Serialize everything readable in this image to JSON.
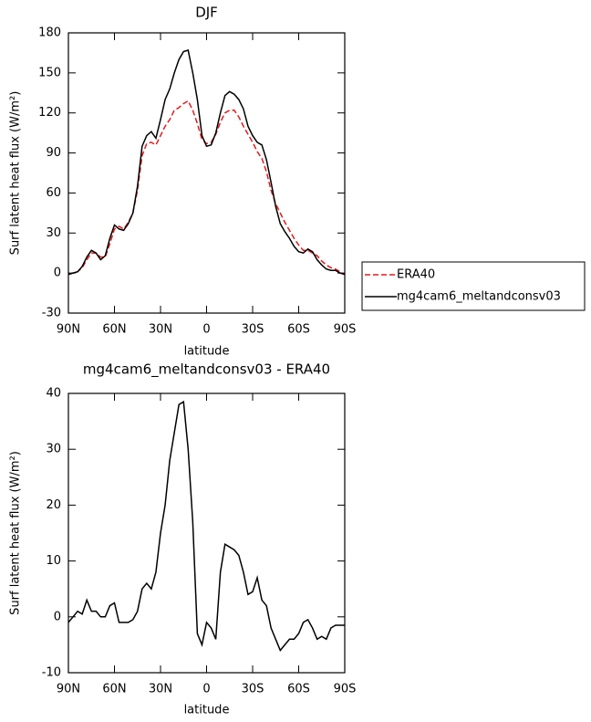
{
  "chart_data": [
    {
      "type": "line",
      "title": "DJF",
      "x_label": "latitude",
      "y_label": "Surf latent heat flux (W/m²)",
      "x": [
        90,
        87,
        84,
        81,
        78,
        75,
        72,
        69,
        66,
        63,
        60,
        57,
        54,
        51,
        48,
        45,
        42,
        39,
        36,
        33,
        30,
        27,
        24,
        21,
        18,
        15,
        12,
        9,
        6,
        3,
        0,
        -3,
        -6,
        -9,
        -12,
        -15,
        -18,
        -21,
        -24,
        -27,
        -30,
        -33,
        -36,
        -39,
        -42,
        -45,
        -48,
        -51,
        -54,
        -57,
        -60,
        -63,
        -66,
        -69,
        -72,
        -75,
        -78,
        -81,
        -84,
        -87,
        -90
      ],
      "series": [
        {
          "name": "ERA40",
          "color": "#e41a1c",
          "line_style": "dashed",
          "values": [
            -1,
            0,
            1,
            4,
            10,
            15,
            15,
            12,
            12,
            22,
            33,
            35,
            33,
            38,
            45,
            62,
            88,
            97,
            98,
            96,
            103,
            110,
            115,
            122,
            124,
            127,
            129,
            122,
            112,
            100,
            97,
            98,
            104,
            113,
            120,
            122,
            122,
            117,
            110,
            104,
            98,
            91,
            86,
            76,
            62,
            52,
            45,
            38,
            32,
            26,
            21,
            17,
            17,
            15,
            13,
            9,
            6,
            4,
            3,
            1,
            -1
          ]
        },
        {
          "name": "mg4cam6_meltandconsv03",
          "color": "#000000",
          "line_style": "solid",
          "values": [
            -1,
            0,
            1,
            5,
            12,
            17,
            15,
            10,
            13,
            26,
            36,
            33,
            32,
            37,
            45,
            65,
            95,
            103,
            106,
            101,
            115,
            130,
            138,
            150,
            160,
            166,
            167,
            150,
            130,
            103,
            95,
            96,
            105,
            120,
            133,
            136,
            134,
            130,
            123,
            110,
            103,
            98,
            96,
            85,
            68,
            50,
            37,
            31,
            26,
            20,
            16,
            15,
            18,
            16,
            10,
            6,
            3,
            2,
            2,
            0,
            -1
          ]
        }
      ],
      "xlim": [
        90,
        -90
      ],
      "xticks": [
        {
          "value": 90,
          "label": "90N"
        },
        {
          "value": 60,
          "label": "60N"
        },
        {
          "value": 30,
          "label": "30N"
        },
        0,
        {
          "value": -30,
          "label": "30S"
        },
        {
          "value": -60,
          "label": "60S"
        },
        {
          "value": -90,
          "label": "90S"
        }
      ],
      "ylim": [
        -30,
        180
      ],
      "yticks": [
        -30,
        0,
        30,
        60,
        90,
        120,
        150,
        180
      ],
      "legend": "right"
    },
    {
      "type": "line",
      "title": "mg4cam6_meltandconsv03 - ERA40",
      "x_label": "latitude",
      "y_label": "Surf latent heat flux (W/m²)",
      "x": [
        90,
        87,
        84,
        81,
        78,
        75,
        72,
        69,
        66,
        63,
        60,
        57,
        54,
        51,
        48,
        45,
        42,
        39,
        36,
        33,
        30,
        27,
        24,
        21,
        18,
        15,
        12,
        9,
        6,
        3,
        0,
        -3,
        -6,
        -9,
        -12,
        -15,
        -18,
        -21,
        -24,
        -27,
        -30,
        -33,
        -36,
        -39,
        -42,
        -45,
        -48,
        -51,
        -54,
        -57,
        -60,
        -63,
        -66,
        -69,
        -72,
        -75,
        -78,
        -81,
        -84,
        -87,
        -90
      ],
      "series": [
        {
          "color": "#000000",
          "line_style": "solid",
          "values": [
            -1,
            0,
            1,
            0.5,
            3,
            1,
            1,
            0,
            0,
            2,
            2.5,
            -1,
            -1,
            -1,
            -0.5,
            1,
            5,
            6,
            5,
            8,
            15,
            20,
            28,
            33,
            38,
            38.5,
            30,
            17,
            -3,
            -5,
            -1,
            -2,
            -4,
            8,
            13,
            12.5,
            12,
            11,
            8,
            4,
            4.5,
            7,
            3,
            2,
            -2,
            -4,
            -6,
            -5,
            -4,
            -4,
            -3,
            -1,
            -0.5,
            -2,
            -4,
            -3.5,
            -4,
            -2,
            -1.5,
            -1.5,
            -1.5
          ]
        }
      ],
      "xlim": [
        90,
        -90
      ],
      "xticks": [
        {
          "value": 90,
          "label": "90N"
        },
        {
          "value": 60,
          "label": "60N"
        },
        {
          "value": 30,
          "label": "30N"
        },
        0,
        {
          "value": -30,
          "label": "30S"
        },
        {
          "value": -60,
          "label": "60S"
        },
        {
          "value": -90,
          "label": "90S"
        }
      ],
      "ylim": [
        -10,
        40
      ],
      "yticks": [
        -10,
        0,
        10,
        20,
        30,
        40
      ]
    }
  ]
}
